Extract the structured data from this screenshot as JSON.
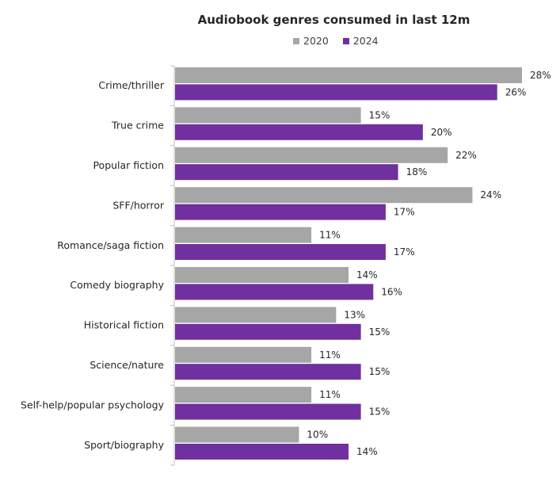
{
  "chart_data": {
    "type": "bar",
    "orientation": "horizontal",
    "title": "Audiobook genres consumed in last 12m",
    "xlabel": "",
    "ylabel": "",
    "categories": [
      "Crime/thriller",
      "True crime",
      "Popular fiction",
      "SFF/horror",
      "Romance/saga fiction",
      "Comedy biography",
      "Historical fiction",
      "Science/nature",
      "Self-help/popular psychology",
      "Sport/biography"
    ],
    "series": [
      {
        "name": "2020",
        "color": "#a6a6a6",
        "values": [
          28,
          15,
          22,
          24,
          11,
          14,
          13,
          11,
          11,
          10
        ]
      },
      {
        "name": "2024",
        "color": "#7030a0",
        "values": [
          26,
          20,
          18,
          17,
          17,
          16,
          15,
          15,
          15,
          14
        ]
      }
    ],
    "value_suffix": "%",
    "xlim": [
      0,
      30
    ],
    "grid": false,
    "legend_position": "top-center",
    "data_labels": true
  }
}
